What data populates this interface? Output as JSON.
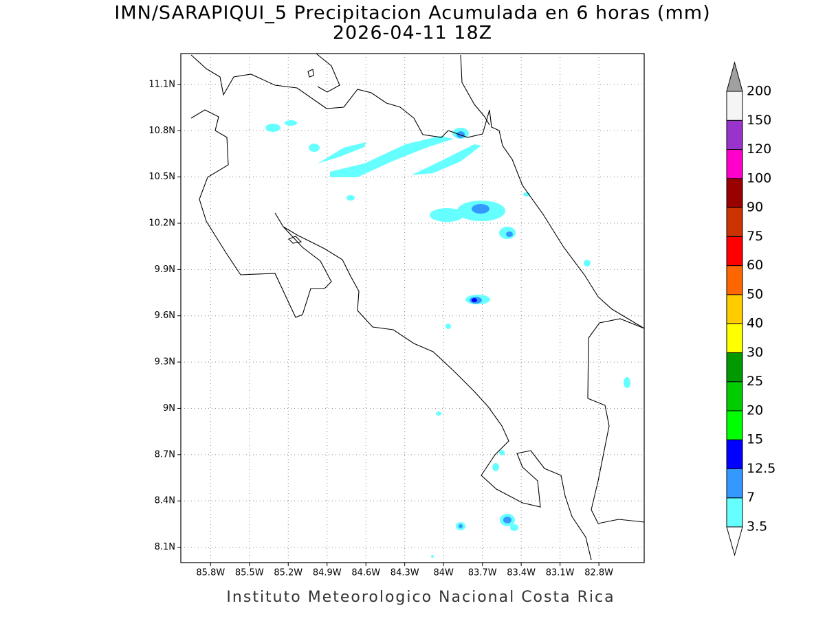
{
  "chart_data": {
    "type": "map",
    "title": "IMN/SARAPIQUI_5 Precipitacion Acumulada en 6 horas (mm)",
    "subtitle": "2026-04-11 18Z",
    "footer": "Instituto Meteorologico Nacional Costa Rica",
    "xlim": [
      -86.03,
      -82.45
    ],
    "ylim": [
      8.0,
      11.3
    ],
    "xticks": [
      {
        "value": -85.8,
        "label": "85.8W"
      },
      {
        "value": -85.5,
        "label": "85.5W"
      },
      {
        "value": -85.2,
        "label": "85.2W"
      },
      {
        "value": -84.9,
        "label": "84.9W"
      },
      {
        "value": -84.6,
        "label": "84.6W"
      },
      {
        "value": -84.3,
        "label": "84.3W"
      },
      {
        "value": -84.0,
        "label": "84W"
      },
      {
        "value": -83.7,
        "label": "83.7W"
      },
      {
        "value": -83.4,
        "label": "83.4W"
      },
      {
        "value": -83.1,
        "label": "83.1W"
      },
      {
        "value": -82.8,
        "label": "82.8W"
      }
    ],
    "yticks": [
      {
        "value": 8.1,
        "label": "8.1N"
      },
      {
        "value": 8.4,
        "label": "8.4N"
      },
      {
        "value": 8.7,
        "label": "8.7N"
      },
      {
        "value": 9.0,
        "label": "9N"
      },
      {
        "value": 9.3,
        "label": "9.3N"
      },
      {
        "value": 9.6,
        "label": "9.6N"
      },
      {
        "value": 9.9,
        "label": "9.9N"
      },
      {
        "value": 10.2,
        "label": "10.2N"
      },
      {
        "value": 10.5,
        "label": "10.5N"
      },
      {
        "value": 10.8,
        "label": "10.8N"
      },
      {
        "value": 11.1,
        "label": "11.1N"
      }
    ],
    "grid": true,
    "colorbar": {
      "levels": [
        3.5,
        7,
        12.5,
        15,
        20,
        25,
        30,
        40,
        50,
        60,
        75,
        90,
        100,
        120,
        150,
        200
      ],
      "colors": [
        "#ffffff",
        "#66ffff",
        "#3399ff",
        "#0000ff",
        "#00ff00",
        "#00cc00",
        "#009900",
        "#ffff00",
        "#ffcc00",
        "#ff6600",
        "#ff0000",
        "#cc3300",
        "#990000",
        "#ff00cc",
        "#9933cc",
        "#f5f5f5",
        "#a0a0a0"
      ]
    }
  }
}
